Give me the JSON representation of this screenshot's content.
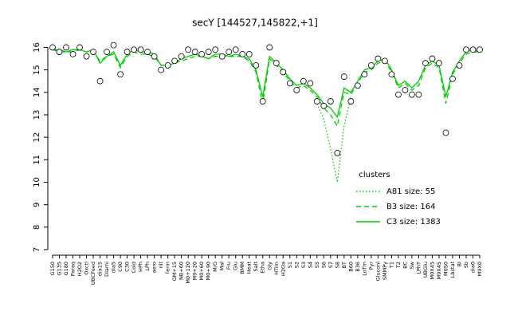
{
  "chart_data": {
    "type": "line",
    "title": "secY [144527,145822,+1]",
    "categories": [
      "G150",
      "G135",
      "G180",
      "Paraq",
      "H2O2",
      "Oxctl",
      "UBCFeed",
      "dia15",
      "Diami",
      "dia5",
      "C90",
      "C30",
      "Cold",
      "HPh",
      "LPh",
      "aero",
      "nit",
      "ferm",
      "GM+15",
      "NB+60",
      "M0+120",
      "M9+20",
      "M0+60",
      "M0+90",
      "M/G",
      "Mal",
      "Fru",
      "Glu",
      "BMM",
      "Heat",
      "Salt",
      "Etha",
      "Gly",
      "HTim",
      "H2Oa",
      "S1",
      "S2",
      "S3",
      "S4",
      "S5",
      "S6",
      "S7",
      "S8",
      "BT",
      "B60",
      "B36",
      "LoTm",
      "Pyr",
      "Gluconl",
      "SMMPy",
      "T1",
      "T2",
      "BC",
      "Sw",
      "LPhT",
      "UBGlu",
      "M0X45",
      "M9X45",
      "M0S0",
      "Lbstat",
      "BI",
      "Sb",
      "dia0",
      "M9X0"
    ],
    "series": [
      {
        "name": "A81 size: 55",
        "color": "#00cc00",
        "dash": "dotted",
        "values": [
          null,
          null,
          null,
          null,
          null,
          null,
          null,
          null,
          null,
          null,
          null,
          null,
          null,
          null,
          null,
          null,
          null,
          null,
          null,
          null,
          null,
          null,
          null,
          null,
          null,
          null,
          null,
          null,
          null,
          null,
          null,
          null,
          null,
          null,
          null,
          null,
          null,
          null,
          null,
          13.5,
          12.8,
          11.5,
          10.0,
          12.5,
          13.8,
          null,
          null,
          null,
          null,
          null,
          null,
          null,
          null,
          null,
          null,
          null,
          null,
          null,
          null,
          null,
          null,
          null,
          null,
          null
        ]
      },
      {
        "name": "B3 size: 164",
        "color": "#00cc00",
        "dash": "dashed",
        "values": [
          15.9,
          15.8,
          15.8,
          15.8,
          15.9,
          15.8,
          15.8,
          15.4,
          15.6,
          15.7,
          15.1,
          15.6,
          15.8,
          15.7,
          15.7,
          15.6,
          15.2,
          15.2,
          15.3,
          15.4,
          15.5,
          15.6,
          15.6,
          15.5,
          15.6,
          15.6,
          15.6,
          15.6,
          15.6,
          15.4,
          14.9,
          13.5,
          15.5,
          15.2,
          14.9,
          14.5,
          14.2,
          14.3,
          14.1,
          13.8,
          13.3,
          13.0,
          12.5,
          14.0,
          13.9,
          14.4,
          14.9,
          15.0,
          15.3,
          15.4,
          14.9,
          14.2,
          14.4,
          14.1,
          14.3,
          15.1,
          15.3,
          15.1,
          13.5,
          14.8,
          15.3,
          15.7,
          15.8,
          15.8
        ]
      },
      {
        "name": "C3 size: 1383",
        "color": "#00cc00",
        "dash": "solid",
        "values": [
          15.9,
          15.9,
          15.8,
          15.9,
          15.9,
          15.8,
          15.9,
          15.3,
          15.6,
          15.8,
          15.2,
          15.7,
          15.9,
          15.8,
          15.8,
          15.7,
          15.2,
          15.2,
          15.3,
          15.5,
          15.6,
          15.7,
          15.6,
          15.5,
          15.7,
          15.7,
          15.6,
          15.7,
          15.6,
          15.5,
          15.0,
          13.8,
          15.6,
          15.3,
          15.0,
          14.6,
          14.3,
          14.4,
          14.2,
          13.9,
          13.5,
          13.3,
          12.9,
          14.2,
          14.0,
          14.5,
          15.0,
          15.1,
          15.4,
          15.5,
          15.0,
          14.3,
          14.5,
          14.2,
          14.5,
          15.2,
          15.4,
          15.2,
          13.8,
          14.9,
          15.4,
          15.8,
          15.9,
          15.8
        ]
      }
    ],
    "points": [
      16.0,
      15.8,
      16.0,
      15.7,
      16.0,
      15.6,
      15.8,
      14.5,
      15.8,
      16.1,
      14.8,
      15.8,
      15.9,
      15.9,
      15.8,
      15.6,
      15.0,
      15.2,
      15.4,
      15.6,
      15.9,
      15.8,
      15.7,
      15.8,
      15.9,
      15.6,
      15.8,
      15.9,
      15.7,
      15.7,
      15.2,
      13.6,
      16.0,
      15.3,
      14.9,
      14.4,
      14.1,
      14.5,
      14.4,
      13.6,
      13.4,
      13.6,
      11.3,
      14.7,
      13.6,
      14.3,
      14.8,
      15.2,
      15.5,
      15.4,
      14.8,
      13.9,
      14.1,
      13.9,
      13.9,
      15.3,
      15.5,
      15.3,
      12.2,
      14.6,
      15.2,
      15.9,
      15.9,
      15.9
    ],
    "ylim": [
      7,
      16.3
    ],
    "yticks": [
      7,
      8,
      9,
      10,
      11,
      12,
      13,
      14,
      15,
      16
    ],
    "legend_title": "clusters"
  }
}
